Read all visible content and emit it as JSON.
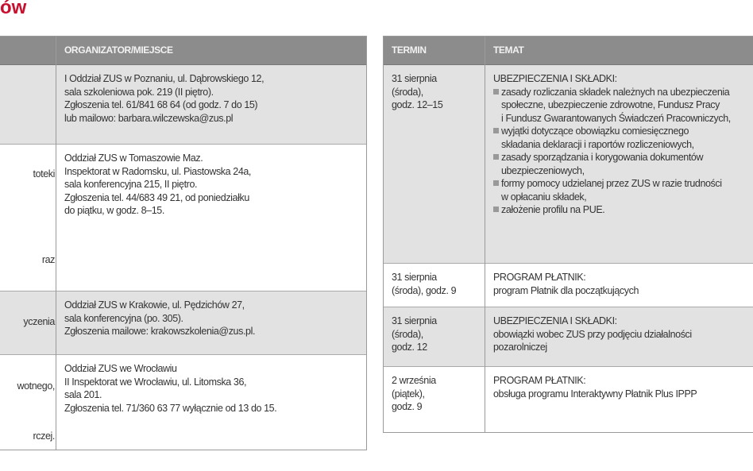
{
  "title_fragment": "ów",
  "left_table": {
    "headers": [
      "",
      "ORGANIZATOR/MIEJSCE"
    ],
    "rows": [
      {
        "left_fragments": [],
        "organizer": [
          "I Oddział ZUS w Poznaniu, ul. Dąbrowskiego 12,",
          "sala szkoleniowa pok. 219 (II piętro).",
          "Zgłoszenia tel. 61/841 68 64 (od godz. 7 do 15)",
          "lub mailowo: barbara.wilczewska@zus.pl"
        ]
      },
      {
        "left_fragments": [
          "toteki",
          "raz"
        ],
        "organizer": [
          "Oddział ZUS w Tomaszowie Maz.",
          "Inspektorat w Radomsku, ul. Piastowska 24a,",
          "sala konferencyjna 215, II piętro.",
          "Zgłoszenia tel. 44/683 49 21, od poniedziałku",
          "do piątku, w godz. 8–15."
        ]
      },
      {
        "left_fragments": [
          "yczenia"
        ],
        "organizer": [
          "Oddział ZUS w Krakowie, ul. Pędzichów 27,",
          "sala konferencyjna (po. 305).",
          "Zgłoszenia mailowe: krakowszkolenia@zus.pl."
        ]
      },
      {
        "left_fragments": [
          "wotnego,",
          "rczej."
        ],
        "organizer": [
          "Oddział ZUS we Wrocławiu",
          "II Inspektorat we Wrocławiu, ul. Litomska 36,",
          "sala 201.",
          "Zgłoszenia tel. 71/360 63 77 wyłącznie od 13 do 15."
        ]
      }
    ]
  },
  "right_table": {
    "headers": [
      "TERMIN",
      "TEMAT"
    ],
    "rows": [
      {
        "date": [
          "31 sierpnia",
          "(środa),",
          "godz. 12–15"
        ],
        "topic_title": "UBEZPIECZENIA I SKŁADKI:",
        "bullets": [
          [
            "zasady rozliczania składek należnych na ubezpieczenia",
            "społeczne, ubezpieczenie zdrowotne, Fundusz Pracy",
            "i Fundusz Gwarantowanych Świadczeń Pracowniczych,"
          ],
          [
            "wyjątki dotyczące obowiązku comiesięcznego",
            "składania deklaracji i raportów rozliczeniowych,"
          ],
          [
            "zasady sporządzania i korygowania dokumentów",
            "ubezpieczeniowych,"
          ],
          [
            "formy pomocy udzielanej przez ZUS w razie trudności",
            "w opłacaniu składek,"
          ],
          [
            "założenie profilu na PUE."
          ]
        ]
      },
      {
        "date": [
          "31 sierpnia",
          "(środa), godz. 9"
        ],
        "topic_title": "PROGRAM PŁATNIK:",
        "lines": [
          "program Płatnik dla początkujących"
        ]
      },
      {
        "date": [
          "31 sierpnia",
          "(środa),",
          "godz. 12"
        ],
        "topic_title": "UBEZPIECZENIA I SKŁADKI:",
        "lines": [
          "obowiązki wobec ZUS przy podjęciu działalności",
          "pozarolniczej"
        ]
      },
      {
        "date": [
          "2 września",
          "(piątek),",
          "godz. 9"
        ],
        "topic_title": "PROGRAM PŁATNIK:",
        "lines": [
          "obsługa programu Interaktywny Płatnik Plus IPPP"
        ]
      }
    ]
  }
}
